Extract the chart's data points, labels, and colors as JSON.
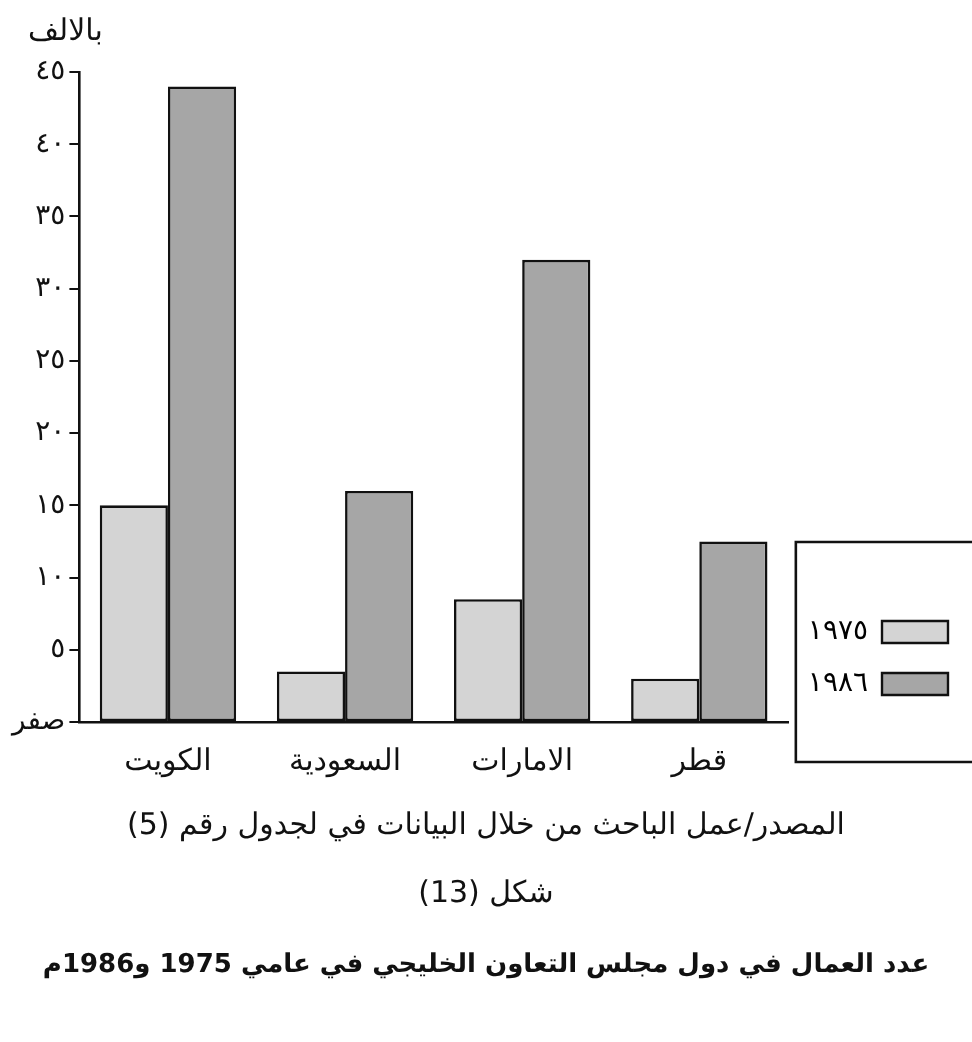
{
  "chart_data": {
    "type": "bar",
    "title": "عدد العمال في دول مجلس التعاون الخليجي في عامي 1975 و1986م",
    "ylabel": "بالالف",
    "annotations": [
      "المصدر/عمل الباحث من خلال البيانات في لجدول رقم (5)",
      "شكل (13)"
    ],
    "categories": [
      "الكويت",
      "السعودية",
      "الامارات",
      "قطر"
    ],
    "series": [
      {
        "name": "١٩٧٥",
        "color": "#d4d4d4",
        "values": [
          15,
          3.5,
          8.5,
          3
        ]
      },
      {
        "name": "١٩٨٦",
        "color": "#a6a6a6",
        "values": [
          44,
          16,
          32,
          12.5
        ]
      }
    ],
    "ylim": [
      0,
      45
    ],
    "yticks": [
      {
        "value": 0,
        "label": "صفر"
      },
      {
        "value": 5,
        "label": "٥"
      },
      {
        "value": 10,
        "label": "١٠"
      },
      {
        "value": 15,
        "label": "١٥"
      },
      {
        "value": 20,
        "label": "٢٠"
      },
      {
        "value": 25,
        "label": "٢٥"
      },
      {
        "value": 30,
        "label": "٣٠"
      },
      {
        "value": 35,
        "label": "٣٥"
      },
      {
        "value": 40,
        "label": "٤٠"
      },
      {
        "value": 45,
        "label": "٤٥"
      }
    ],
    "grid": false,
    "legend": "bottom right"
  }
}
